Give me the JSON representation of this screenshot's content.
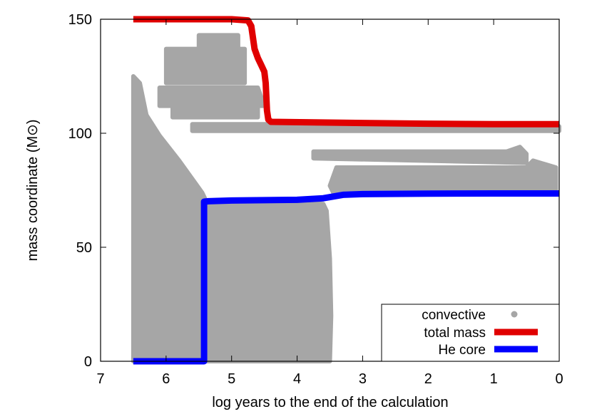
{
  "chart_data": {
    "type": "line",
    "xlabel": "log years to the end of the calculation",
    "ylabel": "mass coordinate (M⊙)",
    "xlim": [
      7,
      0
    ],
    "ylim": [
      0,
      150
    ],
    "x_ticks": [
      "7",
      "6",
      "5",
      "4",
      "3",
      "2",
      "1",
      "0"
    ],
    "y_ticks": [
      "0",
      "50",
      "100",
      "150"
    ],
    "legend_position": "bottom-right",
    "series": [
      {
        "name": "convective",
        "style": "points",
        "color": "#a6a6a6",
        "regions": [
          {
            "polygon": [
              [
                6.5,
                0
              ],
              [
                6.5,
                125
              ],
              [
                6.4,
                122
              ],
              [
                6.3,
                108
              ],
              [
                6.1,
                99
              ],
              [
                5.8,
                88
              ],
              [
                5.6,
                80
              ],
              [
                5.45,
                74
              ],
              [
                5.4,
                71
              ],
              [
                5.4,
                0
              ]
            ]
          },
          {
            "polygon": [
              [
                5.4,
                0
              ],
              [
                5.4,
                70
              ],
              [
                4.0,
                70
              ],
              [
                3.6,
                69
              ],
              [
                3.55,
                66
              ],
              [
                3.5,
                45
              ],
              [
                3.48,
                20
              ],
              [
                3.5,
                0
              ]
            ]
          },
          {
            "polygon": [
              [
                6.1,
                120
              ],
              [
                4.6,
                120
              ],
              [
                4.5,
                112
              ],
              [
                6.1,
                112
              ]
            ]
          },
          {
            "polygon": [
              [
                5.9,
                114
              ],
              [
                4.6,
                114
              ],
              [
                4.6,
                107
              ],
              [
                5.9,
                107
              ]
            ]
          },
          {
            "polygon": [
              [
                5.6,
                104
              ],
              [
                0.05,
                104
              ],
              [
                0.0,
                103
              ],
              [
                0.0,
                101
              ],
              [
                5.6,
                101
              ]
            ]
          },
          {
            "polygon": [
              [
                6.0,
                137
              ],
              [
                4.8,
                137
              ],
              [
                4.8,
                122
              ],
              [
                6.0,
                122
              ]
            ]
          },
          {
            "polygon": [
              [
                5.5,
                143
              ],
              [
                4.9,
                143
              ],
              [
                4.9,
                135
              ],
              [
                5.5,
                135
              ]
            ]
          },
          {
            "polygon": [
              [
                3.75,
                92
              ],
              [
                0.8,
                92
              ],
              [
                0.6,
                94
              ],
              [
                0.5,
                91
              ],
              [
                0.5,
                87
              ],
              [
                3.75,
                89
              ]
            ]
          },
          {
            "polygon": [
              [
                3.4,
                85
              ],
              [
                0.5,
                85
              ],
              [
                0.4,
                88
              ],
              [
                0.05,
                85
              ],
              [
                0.05,
                74
              ],
              [
                3.45,
                74
              ],
              [
                3.5,
                77
              ]
            ]
          }
        ]
      },
      {
        "name": "total mass",
        "style": "line",
        "color": "#e00000",
        "x": [
          6.5,
          5.0,
          4.75,
          4.7,
          4.65,
          4.6,
          4.55,
          4.5,
          4.48,
          4.46,
          4.44,
          4.4,
          3.0,
          2.0,
          1.0,
          0.0
        ],
        "y": [
          150,
          150,
          149.5,
          147,
          137,
          133,
          130,
          127,
          122,
          110,
          106,
          105,
          104.5,
          104.2,
          104,
          104
        ]
      },
      {
        "name": "He core",
        "style": "line",
        "color": "#0000ff",
        "x": [
          6.5,
          5.42,
          5.42,
          5.35,
          5.0,
          4.0,
          3.6,
          3.3,
          3.0,
          2.0,
          1.0,
          0.0
        ],
        "y": [
          0,
          0,
          70,
          70.2,
          70.5,
          70.8,
          71.5,
          73,
          73.3,
          73.5,
          73.6,
          73.6
        ]
      }
    ]
  }
}
